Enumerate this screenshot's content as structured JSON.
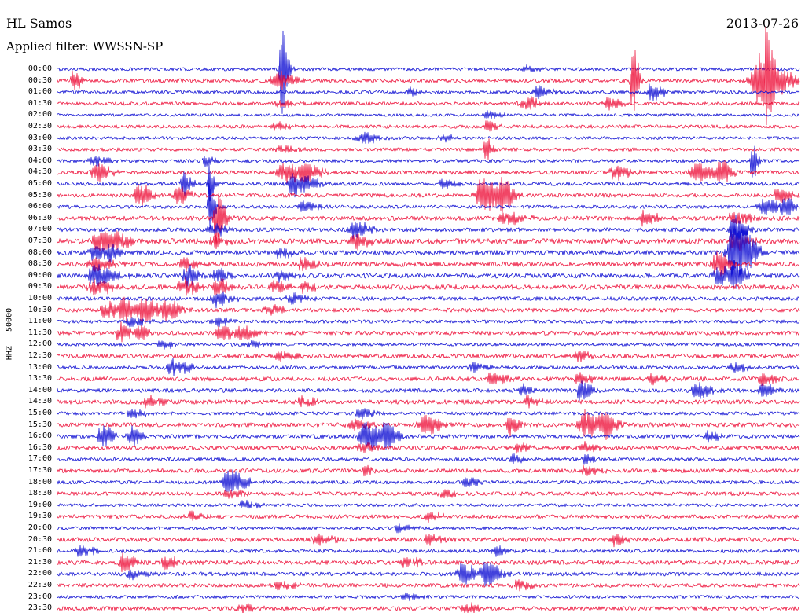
{
  "header": {
    "station": "HL Samos",
    "date": "2013-07-26",
    "filter": "Applied filter: WWSSN-SP"
  },
  "chart_data": {
    "type": "line",
    "subtype": "helicorder-seismogram",
    "title": "HL Samos",
    "date": "2013-07-26",
    "filter": "WWSSN-SP",
    "ylabel": "HHZ - 50000",
    "row_interval_min": 30,
    "legend": "none",
    "grid": false,
    "colors": {
      "blue": "#1414d4",
      "red": "#ee1840"
    },
    "rows": [
      {
        "t": "00:00",
        "c": "blue",
        "n": 2.0,
        "e": [
          [
            0.302,
            88,
            0.0035
          ],
          [
            0.63,
            4,
            0.01
          ]
        ]
      },
      {
        "t": "00:30",
        "c": "red",
        "n": 2.4,
        "e": [
          [
            0.022,
            14,
            0.005
          ],
          [
            0.295,
            12,
            0.01
          ],
          [
            0.775,
            52,
            0.0035
          ],
          [
            0.945,
            34,
            0.016
          ],
          [
            0.955,
            55,
            0.003
          ]
        ]
      },
      {
        "t": "01:00",
        "c": "blue",
        "n": 2.0,
        "e": [
          [
            0.475,
            5,
            0.008
          ],
          [
            0.646,
            8,
            0.009
          ],
          [
            0.8,
            12,
            0.007
          ]
        ]
      },
      {
        "t": "01:30",
        "c": "red",
        "n": 2.2,
        "e": [
          [
            0.3,
            5,
            0.01
          ],
          [
            0.63,
            9,
            0.009
          ],
          [
            0.742,
            9,
            0.008
          ]
        ]
      },
      {
        "t": "02:00",
        "c": "blue",
        "n": 1.8,
        "e": [
          [
            0.58,
            5,
            0.01
          ]
        ]
      },
      {
        "t": "02:30",
        "c": "red",
        "n": 2.2,
        "e": [
          [
            0.295,
            6,
            0.008
          ],
          [
            0.58,
            9,
            0.006
          ]
        ]
      },
      {
        "t": "03:00",
        "c": "blue",
        "n": 2.0,
        "e": [
          [
            0.41,
            7,
            0.011
          ],
          [
            0.52,
            5,
            0.009
          ]
        ]
      },
      {
        "t": "03:30",
        "c": "red",
        "n": 2.2,
        "e": [
          [
            0.3,
            4,
            0.01
          ],
          [
            0.577,
            19,
            0.004
          ]
        ]
      },
      {
        "t": "04:00",
        "c": "blue",
        "n": 2.2,
        "e": [
          [
            0.05,
            6,
            0.009
          ],
          [
            0.2,
            8,
            0.006
          ],
          [
            0.936,
            26,
            0.0035
          ]
        ]
      },
      {
        "t": "04:30",
        "c": "red",
        "n": 2.5,
        "e": [
          [
            0.053,
            12,
            0.009
          ],
          [
            0.305,
            15,
            0.013
          ],
          [
            0.335,
            11,
            0.009
          ],
          [
            0.75,
            9,
            0.01
          ],
          [
            0.86,
            13,
            0.011
          ],
          [
            0.893,
            15,
            0.007
          ]
        ]
      },
      {
        "t": "05:00",
        "c": "blue",
        "n": 2.2,
        "e": [
          [
            0.17,
            17,
            0.005
          ],
          [
            0.205,
            28,
            0.0035
          ],
          [
            0.32,
            15,
            0.013
          ],
          [
            0.52,
            6,
            0.009
          ]
        ]
      },
      {
        "t": "05:30",
        "c": "red",
        "n": 2.5,
        "e": [
          [
            0.11,
            17,
            0.007
          ],
          [
            0.163,
            13,
            0.007
          ],
          [
            0.572,
            24,
            0.011
          ],
          [
            0.6,
            18,
            0.007
          ],
          [
            0.97,
            8,
            0.009
          ]
        ]
      },
      {
        "t": "06:00",
        "c": "blue",
        "n": 2.2,
        "e": [
          [
            0.205,
            32,
            0.0035
          ],
          [
            0.33,
            8,
            0.009
          ],
          [
            0.95,
            10,
            0.011
          ],
          [
            0.98,
            11,
            0.007
          ]
        ]
      },
      {
        "t": "06:30",
        "c": "red",
        "n": 2.8,
        "e": [
          [
            0.215,
            40,
            0.005
          ],
          [
            0.6,
            9,
            0.013
          ],
          [
            0.79,
            11,
            0.009
          ],
          [
            0.91,
            9,
            0.011
          ]
        ]
      },
      {
        "t": "07:00",
        "c": "blue",
        "n": 2.5,
        "e": [
          [
            0.21,
            8,
            0.009
          ],
          [
            0.4,
            11,
            0.009
          ],
          [
            0.91,
            16,
            0.009
          ]
        ]
      },
      {
        "t": "07:30",
        "c": "red",
        "n": 3.4,
        "e": [
          [
            0.055,
            15,
            0.009
          ],
          [
            0.082,
            11,
            0.007
          ],
          [
            0.21,
            9,
            0.008
          ],
          [
            0.4,
            9,
            0.009
          ],
          [
            0.91,
            19,
            0.009
          ]
        ]
      },
      {
        "t": "08:00",
        "c": "blue",
        "n": 3.0,
        "e": [
          [
            0.05,
            11,
            0.009
          ],
          [
            0.072,
            9,
            0.007
          ],
          [
            0.3,
            6,
            0.009
          ],
          [
            0.911,
            52,
            0.011
          ]
        ]
      },
      {
        "t": "08:30",
        "c": "red",
        "n": 3.0,
        "e": [
          [
            0.05,
            10,
            0.011
          ],
          [
            0.17,
            8,
            0.009
          ],
          [
            0.33,
            8,
            0.009
          ],
          [
            0.888,
            16,
            0.009
          ]
        ]
      },
      {
        "t": "09:00",
        "c": "blue",
        "n": 3.0,
        "e": [
          [
            0.05,
            15,
            0.013
          ],
          [
            0.175,
            13,
            0.007
          ],
          [
            0.215,
            9,
            0.007
          ],
          [
            0.3,
            7,
            0.009
          ],
          [
            0.89,
            13,
            0.009
          ],
          [
            0.912,
            18,
            0.007
          ]
        ]
      },
      {
        "t": "09:30",
        "c": "red",
        "n": 3.0,
        "e": [
          [
            0.05,
            11,
            0.011
          ],
          [
            0.17,
            11,
            0.009
          ],
          [
            0.215,
            13,
            0.007
          ],
          [
            0.29,
            9,
            0.009
          ],
          [
            0.33,
            7,
            0.007
          ]
        ]
      },
      {
        "t": "10:00",
        "c": "blue",
        "n": 2.5,
        "e": [
          [
            0.215,
            11,
            0.009
          ],
          [
            0.315,
            7,
            0.009
          ]
        ]
      },
      {
        "t": "10:30",
        "c": "red",
        "n": 2.6,
        "e": [
          [
            0.065,
            13,
            0.009
          ],
          [
            0.09,
            15,
            0.007
          ],
          [
            0.115,
            19,
            0.009
          ],
          [
            0.147,
            13,
            0.009
          ],
          [
            0.285,
            7,
            0.009
          ]
        ]
      },
      {
        "t": "11:00",
        "c": "blue",
        "n": 2.2,
        "e": [
          [
            0.1,
            7,
            0.009
          ],
          [
            0.215,
            6,
            0.009
          ]
        ]
      },
      {
        "t": "11:30",
        "c": "red",
        "n": 2.6,
        "e": [
          [
            0.085,
            13,
            0.007
          ],
          [
            0.11,
            9,
            0.007
          ],
          [
            0.22,
            9,
            0.011
          ],
          [
            0.25,
            7,
            0.009
          ]
        ]
      },
      {
        "t": "12:00",
        "c": "blue",
        "n": 2.0,
        "e": [
          [
            0.14,
            5,
            0.009
          ],
          [
            0.26,
            5,
            0.009
          ]
        ]
      },
      {
        "t": "12:30",
        "c": "red",
        "n": 2.8,
        "e": [
          [
            0.3,
            6,
            0.011
          ],
          [
            0.7,
            9,
            0.007
          ]
        ]
      },
      {
        "t": "13:00",
        "c": "blue",
        "n": 2.2,
        "e": [
          [
            0.155,
            11,
            0.011
          ],
          [
            0.56,
            6,
            0.009
          ],
          [
            0.91,
            6,
            0.009
          ]
        ]
      },
      {
        "t": "13:30",
        "c": "red",
        "n": 2.8,
        "e": [
          [
            0.585,
            9,
            0.009
          ],
          [
            0.7,
            7,
            0.009
          ],
          [
            0.8,
            7,
            0.009
          ],
          [
            0.95,
            9,
            0.007
          ]
        ]
      },
      {
        "t": "14:00",
        "c": "blue",
        "n": 2.5,
        "e": [
          [
            0.625,
            9,
            0.007
          ],
          [
            0.705,
            15,
            0.007
          ],
          [
            0.86,
            11,
            0.009
          ],
          [
            0.95,
            11,
            0.007
          ]
        ]
      },
      {
        "t": "14:30",
        "c": "red",
        "n": 2.8,
        "e": [
          [
            0.12,
            7,
            0.009
          ],
          [
            0.33,
            6,
            0.009
          ],
          [
            0.63,
            8,
            0.009
          ]
        ]
      },
      {
        "t": "15:00",
        "c": "blue",
        "n": 2.2,
        "e": [
          [
            0.1,
            6,
            0.009
          ],
          [
            0.41,
            8,
            0.009
          ]
        ]
      },
      {
        "t": "15:30",
        "c": "red",
        "n": 2.8,
        "e": [
          [
            0.4,
            8,
            0.011
          ],
          [
            0.495,
            13,
            0.011
          ],
          [
            0.61,
            13,
            0.007
          ],
          [
            0.71,
            19,
            0.011
          ],
          [
            0.737,
            15,
            0.007
          ]
        ]
      },
      {
        "t": "16:00",
        "c": "blue",
        "n": 2.5,
        "e": [
          [
            0.06,
            15,
            0.007
          ],
          [
            0.1,
            13,
            0.007
          ],
          [
            0.415,
            19,
            0.011
          ],
          [
            0.443,
            15,
            0.007
          ],
          [
            0.875,
            9,
            0.007
          ]
        ]
      },
      {
        "t": "16:30",
        "c": "red",
        "n": 2.5,
        "e": [
          [
            0.41,
            7,
            0.009
          ],
          [
            0.62,
            7,
            0.007
          ],
          [
            0.71,
            7,
            0.007
          ]
        ]
      },
      {
        "t": "17:00",
        "c": "blue",
        "n": 2.2,
        "e": [
          [
            0.615,
            7,
            0.007
          ],
          [
            0.71,
            9,
            0.005
          ]
        ]
      },
      {
        "t": "17:30",
        "c": "red",
        "n": 2.5,
        "e": [
          [
            0.415,
            11,
            0.0035
          ],
          [
            0.71,
            6,
            0.009
          ]
        ]
      },
      {
        "t": "18:00",
        "c": "blue",
        "n": 2.2,
        "e": [
          [
            0.23,
            15,
            0.011
          ],
          [
            0.55,
            7,
            0.009
          ]
        ]
      },
      {
        "t": "18:30",
        "c": "red",
        "n": 2.5,
        "e": [
          [
            0.23,
            6,
            0.009
          ],
          [
            0.52,
            7,
            0.007
          ]
        ]
      },
      {
        "t": "19:00",
        "c": "blue",
        "n": 2.0,
        "e": [
          [
            0.25,
            5,
            0.009
          ]
        ]
      },
      {
        "t": "19:30",
        "c": "red",
        "n": 2.5,
        "e": [
          [
            0.18,
            6,
            0.009
          ],
          [
            0.5,
            6,
            0.009
          ]
        ]
      },
      {
        "t": "20:00",
        "c": "blue",
        "n": 2.0,
        "e": [
          [
            0.46,
            5,
            0.009
          ]
        ]
      },
      {
        "t": "20:30",
        "c": "red",
        "n": 2.8,
        "e": [
          [
            0.35,
            7,
            0.009
          ],
          [
            0.5,
            7,
            0.007
          ],
          [
            0.75,
            9,
            0.007
          ]
        ]
      },
      {
        "t": "21:00",
        "c": "blue",
        "n": 2.2,
        "e": [
          [
            0.03,
            7,
            0.009
          ],
          [
            0.59,
            7,
            0.007
          ]
        ]
      },
      {
        "t": "21:30",
        "c": "red",
        "n": 2.8,
        "e": [
          [
            0.09,
            13,
            0.007
          ],
          [
            0.145,
            11,
            0.007
          ],
          [
            0.47,
            7,
            0.009
          ]
        ]
      },
      {
        "t": "22:00",
        "c": "blue",
        "n": 2.5,
        "e": [
          [
            0.1,
            6,
            0.009
          ],
          [
            0.545,
            15,
            0.009
          ],
          [
            0.578,
            17,
            0.009
          ]
        ]
      },
      {
        "t": "22:30",
        "c": "red",
        "n": 2.5,
        "e": [
          [
            0.3,
            6,
            0.009
          ],
          [
            0.62,
            6,
            0.009
          ]
        ]
      },
      {
        "t": "23:00",
        "c": "blue",
        "n": 2.0,
        "e": [
          [
            0.47,
            5,
            0.009
          ]
        ]
      },
      {
        "t": "23:30",
        "c": "red",
        "n": 2.5,
        "e": [
          [
            0.25,
            6,
            0.009
          ],
          [
            0.55,
            6,
            0.009
          ]
        ]
      }
    ]
  }
}
